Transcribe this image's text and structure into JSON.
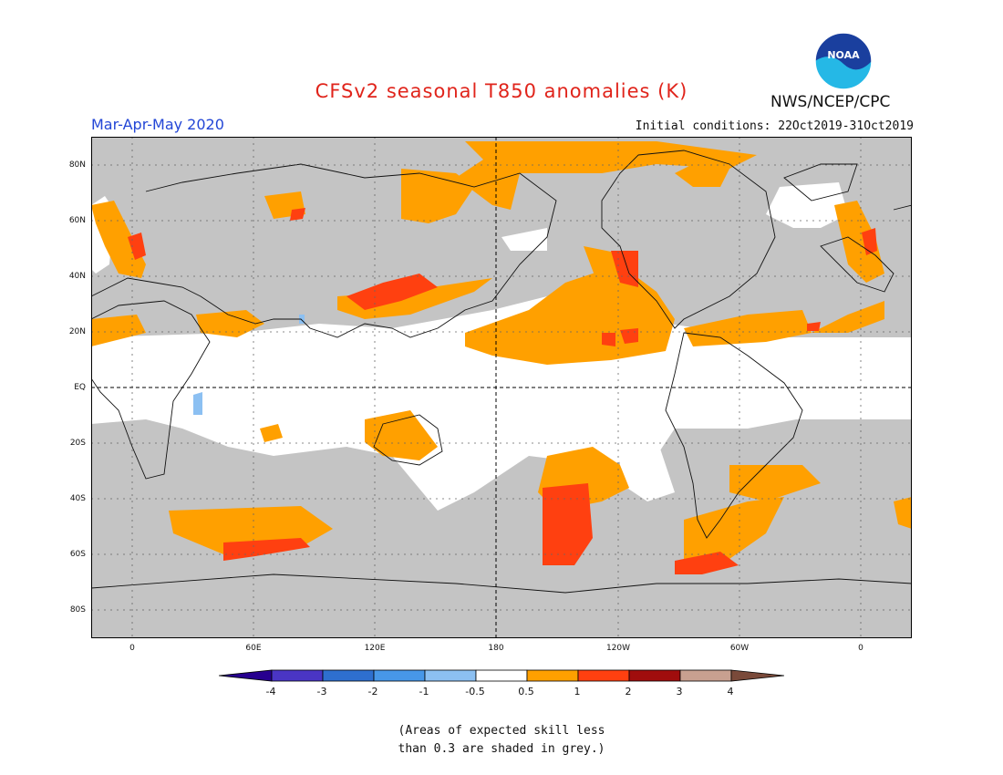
{
  "title": "CFSv2 seasonal T850 anomalies (K)",
  "season": "Mar-Apr-May 2020",
  "initial_conditions": "Initial conditions: 22Oct2019-31Oct2019",
  "agency": "NWS/NCEP/CPC",
  "logo_text": "NOAA",
  "latitude_labels": [
    "80N",
    "60N",
    "40N",
    "20N",
    "EQ",
    "20S",
    "40S",
    "60S",
    "80S"
  ],
  "longitude_labels": [
    "0",
    "60E",
    "120E",
    "180",
    "120W",
    "60W",
    "0"
  ],
  "colorbar": {
    "labels": [
      "-4",
      "-3",
      "-2",
      "-1",
      "-0.5",
      "0.5",
      "1",
      "2",
      "3",
      "4"
    ],
    "colors": [
      "#27008f",
      "#4a35c4",
      "#2e6fcf",
      "#4797e8",
      "#8cc0f2",
      "#ffffff",
      "#ffa000",
      "#ff4010",
      "#a00d0d",
      "#c8a090",
      "#7a4a3a"
    ]
  },
  "legend_note": [
    "(Areas of expected skill less",
    "than 0.3 are shaded in grey.)"
  ],
  "colors": {
    "skill_grey": "#c4c4c4",
    "anomaly_05_1": "#ffa000",
    "anomaly_1_2": "#ff4010",
    "anomaly_neg": "#8cc0f2"
  }
}
